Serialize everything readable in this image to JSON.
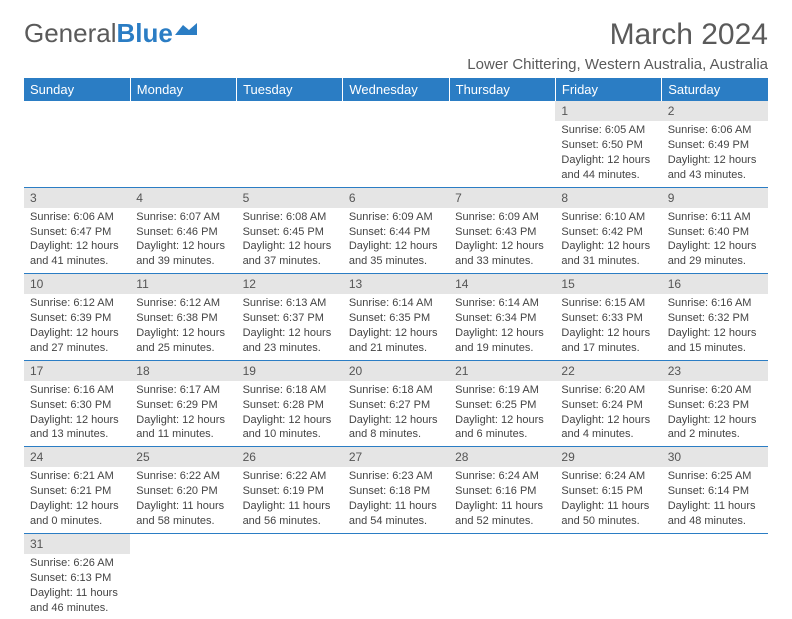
{
  "brand": {
    "name1": "General",
    "name2": "Blue"
  },
  "title": "March 2024",
  "subtitle": "Lower Chittering, Western Australia, Australia",
  "colors": {
    "header": "#2b7dc4",
    "daybar": "#e5e5e5",
    "text": "#5a5a5a",
    "rowline": "#2b7dc4"
  },
  "weekdays": [
    "Sunday",
    "Monday",
    "Tuesday",
    "Wednesday",
    "Thursday",
    "Friday",
    "Saturday"
  ],
  "weeks": [
    [
      null,
      null,
      null,
      null,
      null,
      {
        "n": "1",
        "sr": "6:05 AM",
        "ss": "6:50 PM",
        "dh": "12",
        "dm": "44"
      },
      {
        "n": "2",
        "sr": "6:06 AM",
        "ss": "6:49 PM",
        "dh": "12",
        "dm": "43"
      }
    ],
    [
      {
        "n": "3",
        "sr": "6:06 AM",
        "ss": "6:47 PM",
        "dh": "12",
        "dm": "41"
      },
      {
        "n": "4",
        "sr": "6:07 AM",
        "ss": "6:46 PM",
        "dh": "12",
        "dm": "39"
      },
      {
        "n": "5",
        "sr": "6:08 AM",
        "ss": "6:45 PM",
        "dh": "12",
        "dm": "37"
      },
      {
        "n": "6",
        "sr": "6:09 AM",
        "ss": "6:44 PM",
        "dh": "12",
        "dm": "35"
      },
      {
        "n": "7",
        "sr": "6:09 AM",
        "ss": "6:43 PM",
        "dh": "12",
        "dm": "33"
      },
      {
        "n": "8",
        "sr": "6:10 AM",
        "ss": "6:42 PM",
        "dh": "12",
        "dm": "31"
      },
      {
        "n": "9",
        "sr": "6:11 AM",
        "ss": "6:40 PM",
        "dh": "12",
        "dm": "29"
      }
    ],
    [
      {
        "n": "10",
        "sr": "6:12 AM",
        "ss": "6:39 PM",
        "dh": "12",
        "dm": "27"
      },
      {
        "n": "11",
        "sr": "6:12 AM",
        "ss": "6:38 PM",
        "dh": "12",
        "dm": "25"
      },
      {
        "n": "12",
        "sr": "6:13 AM",
        "ss": "6:37 PM",
        "dh": "12",
        "dm": "23"
      },
      {
        "n": "13",
        "sr": "6:14 AM",
        "ss": "6:35 PM",
        "dh": "12",
        "dm": "21"
      },
      {
        "n": "14",
        "sr": "6:14 AM",
        "ss": "6:34 PM",
        "dh": "12",
        "dm": "19"
      },
      {
        "n": "15",
        "sr": "6:15 AM",
        "ss": "6:33 PM",
        "dh": "12",
        "dm": "17"
      },
      {
        "n": "16",
        "sr": "6:16 AM",
        "ss": "6:32 PM",
        "dh": "12",
        "dm": "15"
      }
    ],
    [
      {
        "n": "17",
        "sr": "6:16 AM",
        "ss": "6:30 PM",
        "dh": "12",
        "dm": "13"
      },
      {
        "n": "18",
        "sr": "6:17 AM",
        "ss": "6:29 PM",
        "dh": "12",
        "dm": "11"
      },
      {
        "n": "19",
        "sr": "6:18 AM",
        "ss": "6:28 PM",
        "dh": "12",
        "dm": "10"
      },
      {
        "n": "20",
        "sr": "6:18 AM",
        "ss": "6:27 PM",
        "dh": "12",
        "dm": "8"
      },
      {
        "n": "21",
        "sr": "6:19 AM",
        "ss": "6:25 PM",
        "dh": "12",
        "dm": "6"
      },
      {
        "n": "22",
        "sr": "6:20 AM",
        "ss": "6:24 PM",
        "dh": "12",
        "dm": "4"
      },
      {
        "n": "23",
        "sr": "6:20 AM",
        "ss": "6:23 PM",
        "dh": "12",
        "dm": "2"
      }
    ],
    [
      {
        "n": "24",
        "sr": "6:21 AM",
        "ss": "6:21 PM",
        "dh": "12",
        "dm": "0"
      },
      {
        "n": "25",
        "sr": "6:22 AM",
        "ss": "6:20 PM",
        "dh": "11",
        "dm": "58"
      },
      {
        "n": "26",
        "sr": "6:22 AM",
        "ss": "6:19 PM",
        "dh": "11",
        "dm": "56"
      },
      {
        "n": "27",
        "sr": "6:23 AM",
        "ss": "6:18 PM",
        "dh": "11",
        "dm": "54"
      },
      {
        "n": "28",
        "sr": "6:24 AM",
        "ss": "6:16 PM",
        "dh": "11",
        "dm": "52"
      },
      {
        "n": "29",
        "sr": "6:24 AM",
        "ss": "6:15 PM",
        "dh": "11",
        "dm": "50"
      },
      {
        "n": "30",
        "sr": "6:25 AM",
        "ss": "6:14 PM",
        "dh": "11",
        "dm": "48"
      }
    ],
    [
      {
        "n": "31",
        "sr": "6:26 AM",
        "ss": "6:13 PM",
        "dh": "11",
        "dm": "46"
      },
      null,
      null,
      null,
      null,
      null,
      null
    ]
  ],
  "labels": {
    "sunrise": "Sunrise:",
    "sunset": "Sunset:",
    "daylight": "Daylight:",
    "hours": "hours",
    "and": "and",
    "minutes": "minutes."
  }
}
